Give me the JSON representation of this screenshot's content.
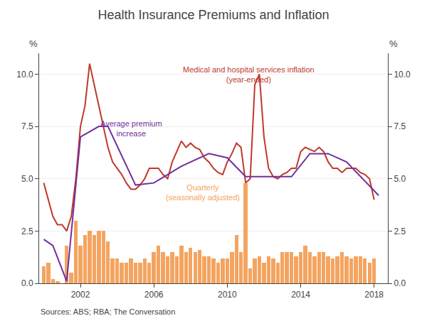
{
  "chart_data": {
    "type": "combo",
    "title": "Health Insurance Premiums and Inflation",
    "ylabel": "%",
    "y2label": "%",
    "source": "Sources: ABS; RBA; The Conversation",
    "xlim": [
      1999.75,
      2018.75
    ],
    "xticks": [
      2002,
      2006,
      2010,
      2014,
      2018
    ],
    "ylim": [
      0,
      11
    ],
    "yticks": [
      {
        "value": 0,
        "label": "0.0"
      },
      2.5,
      {
        "value": 5,
        "label": "5.0"
      },
      7.5,
      {
        "value": 10,
        "label": "10.0"
      }
    ],
    "y2lim": [
      0,
      11
    ],
    "y2ticks": [
      {
        "value": 0,
        "label": "0.0"
      },
      2.5,
      {
        "value": 5,
        "label": "5.0"
      },
      7.5,
      {
        "value": 10,
        "label": "10.0"
      }
    ],
    "grid": true,
    "annotations": [
      {
        "text": "Medical and hospital services inflation\n(year-ended)",
        "color": "#C0392B"
      },
      {
        "text": "Average premium\nincrease",
        "color": "#7030A0"
      },
      {
        "text": "Quarterly\n(seasonally adjusted)",
        "color": "#F4A460"
      }
    ],
    "series": [
      {
        "type": "bar",
        "color": "#F4A460",
        "x": [
          2000.0,
          2000.25,
          2000.5,
          2000.75,
          2001.0,
          2001.25,
          2001.5,
          2001.75,
          2002.0,
          2002.25,
          2002.5,
          2002.75,
          2003.0,
          2003.25,
          2003.5,
          2003.75,
          2004.0,
          2004.25,
          2004.5,
          2004.75,
          2005.0,
          2005.25,
          2005.5,
          2005.75,
          2006.0,
          2006.25,
          2006.5,
          2006.75,
          2007.0,
          2007.25,
          2007.5,
          2007.75,
          2008.0,
          2008.25,
          2008.5,
          2008.75,
          2009.0,
          2009.25,
          2009.5,
          2009.75,
          2010.0,
          2010.25,
          2010.5,
          2010.75,
          2011.0,
          2011.25,
          2011.5,
          2011.75,
          2012.0,
          2012.25,
          2012.5,
          2012.75,
          2013.0,
          2013.25,
          2013.5,
          2013.75,
          2014.0,
          2014.25,
          2014.5,
          2014.75,
          2015.0,
          2015.25,
          2015.5,
          2015.75,
          2016.0,
          2016.25,
          2016.5,
          2016.75,
          2017.0,
          2017.25,
          2017.5,
          2017.75,
          2018.0
        ],
        "values": [
          0.8,
          1.0,
          0.2,
          0.1,
          0.0,
          1.8,
          0.5,
          3.0,
          1.8,
          2.3,
          2.5,
          2.3,
          2.5,
          2.5,
          2.0,
          1.2,
          1.2,
          1.0,
          1.0,
          1.2,
          1.0,
          1.0,
          1.2,
          1.0,
          1.5,
          1.8,
          1.5,
          1.3,
          1.5,
          1.3,
          1.8,
          1.5,
          1.7,
          1.5,
          1.6,
          1.3,
          1.3,
          1.2,
          1.0,
          1.2,
          1.2,
          1.5,
          2.3,
          1.5,
          4.8,
          0.7,
          1.2,
          1.3,
          1.0,
          1.3,
          1.2,
          1.0,
          1.5,
          1.5,
          1.5,
          1.3,
          1.5,
          1.8,
          1.5,
          1.3,
          1.5,
          1.5,
          1.3,
          1.2,
          1.3,
          1.5,
          1.3,
          1.2,
          1.3,
          1.3,
          1.2,
          1.0,
          1.2
        ]
      },
      {
        "type": "line",
        "color": "#C0392B",
        "x": [
          2000.0,
          2000.25,
          2000.5,
          2000.75,
          2001.0,
          2001.25,
          2001.5,
          2001.75,
          2002.0,
          2002.25,
          2002.5,
          2002.75,
          2003.0,
          2003.25,
          2003.5,
          2003.75,
          2004.0,
          2004.25,
          2004.5,
          2004.75,
          2005.0,
          2005.25,
          2005.5,
          2005.75,
          2006.0,
          2006.25,
          2006.5,
          2006.75,
          2007.0,
          2007.25,
          2007.5,
          2007.75,
          2008.0,
          2008.25,
          2008.5,
          2008.75,
          2009.0,
          2009.25,
          2009.5,
          2009.75,
          2010.0,
          2010.25,
          2010.5,
          2010.75,
          2011.0,
          2011.25,
          2011.5,
          2011.75,
          2012.0,
          2012.25,
          2012.5,
          2012.75,
          2013.0,
          2013.25,
          2013.5,
          2013.75,
          2014.0,
          2014.25,
          2014.5,
          2014.75,
          2015.0,
          2015.25,
          2015.5,
          2015.75,
          2016.0,
          2016.25,
          2016.5,
          2016.75,
          2017.0,
          2017.25,
          2017.5,
          2017.75,
          2018.0
        ],
        "values": [
          4.8,
          4.0,
          3.2,
          2.8,
          2.8,
          2.5,
          3.2,
          5.0,
          7.5,
          8.5,
          10.5,
          9.5,
          8.5,
          7.5,
          6.5,
          5.8,
          5.5,
          5.2,
          4.8,
          4.5,
          4.5,
          4.7,
          5.0,
          5.5,
          5.5,
          5.5,
          5.2,
          5.0,
          5.8,
          6.3,
          6.8,
          6.5,
          6.7,
          6.5,
          6.4,
          6.0,
          5.8,
          5.5,
          5.3,
          5.2,
          5.8,
          6.2,
          6.7,
          6.5,
          4.8,
          5.0,
          9.5,
          10.0,
          7.0,
          5.5,
          5.1,
          5.0,
          5.2,
          5.3,
          5.5,
          5.5,
          6.3,
          6.5,
          6.4,
          6.3,
          6.5,
          6.3,
          5.8,
          5.5,
          5.5,
          5.3,
          5.5,
          5.5,
          5.5,
          5.3,
          5.2,
          5.0,
          4.0
        ]
      },
      {
        "type": "line",
        "color": "#7030A0",
        "x": [
          2000.0,
          2000.5,
          2001.25,
          2002.0,
          2003.0,
          2003.5,
          2005.0,
          2006.0,
          2007.5,
          2009.0,
          2010.0,
          2011.0,
          2012.5,
          2013.5,
          2014.5,
          2015.5,
          2016.5,
          2018.25
        ],
        "values": [
          2.1,
          1.8,
          0.1,
          7.0,
          7.5,
          7.5,
          4.7,
          4.8,
          5.6,
          6.2,
          6.0,
          5.1,
          5.1,
          5.1,
          6.2,
          6.2,
          5.8,
          4.2
        ]
      }
    ]
  }
}
